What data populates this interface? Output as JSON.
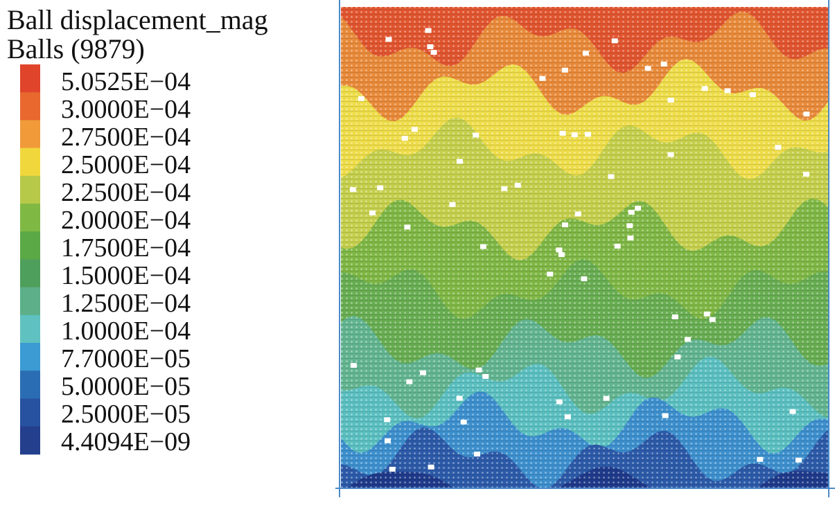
{
  "legend": {
    "title": "Ball displacement_mag",
    "subtitle": "Balls (9879)",
    "entries": [
      {
        "label": "5.0525E−04",
        "color": "#e0442b"
      },
      {
        "label": "3.0000E−04",
        "color": "#e8682e"
      },
      {
        "label": "2.7500E−04",
        "color": "#f09a3a"
      },
      {
        "label": "2.5000E−04",
        "color": "#f0d83c"
      },
      {
        "label": "2.2500E−04",
        "color": "#b7c948"
      },
      {
        "label": "2.0000E−04",
        "color": "#7fb944"
      },
      {
        "label": "1.7500E−04",
        "color": "#5ba847"
      },
      {
        "label": "1.5000E−04",
        "color": "#4f9f5c"
      },
      {
        "label": "1.2500E−04",
        "color": "#5caf88"
      },
      {
        "label": "1.0000E−04",
        "color": "#5fc1c0"
      },
      {
        "label": "7.7000E−05",
        "color": "#3b9bd2"
      },
      {
        "label": "5.0000E−05",
        "color": "#2b6db3"
      },
      {
        "label": "2.5000E−05",
        "color": "#27529f"
      },
      {
        "label": "4.4094E−09",
        "color": "#243f8c"
      }
    ]
  }
}
